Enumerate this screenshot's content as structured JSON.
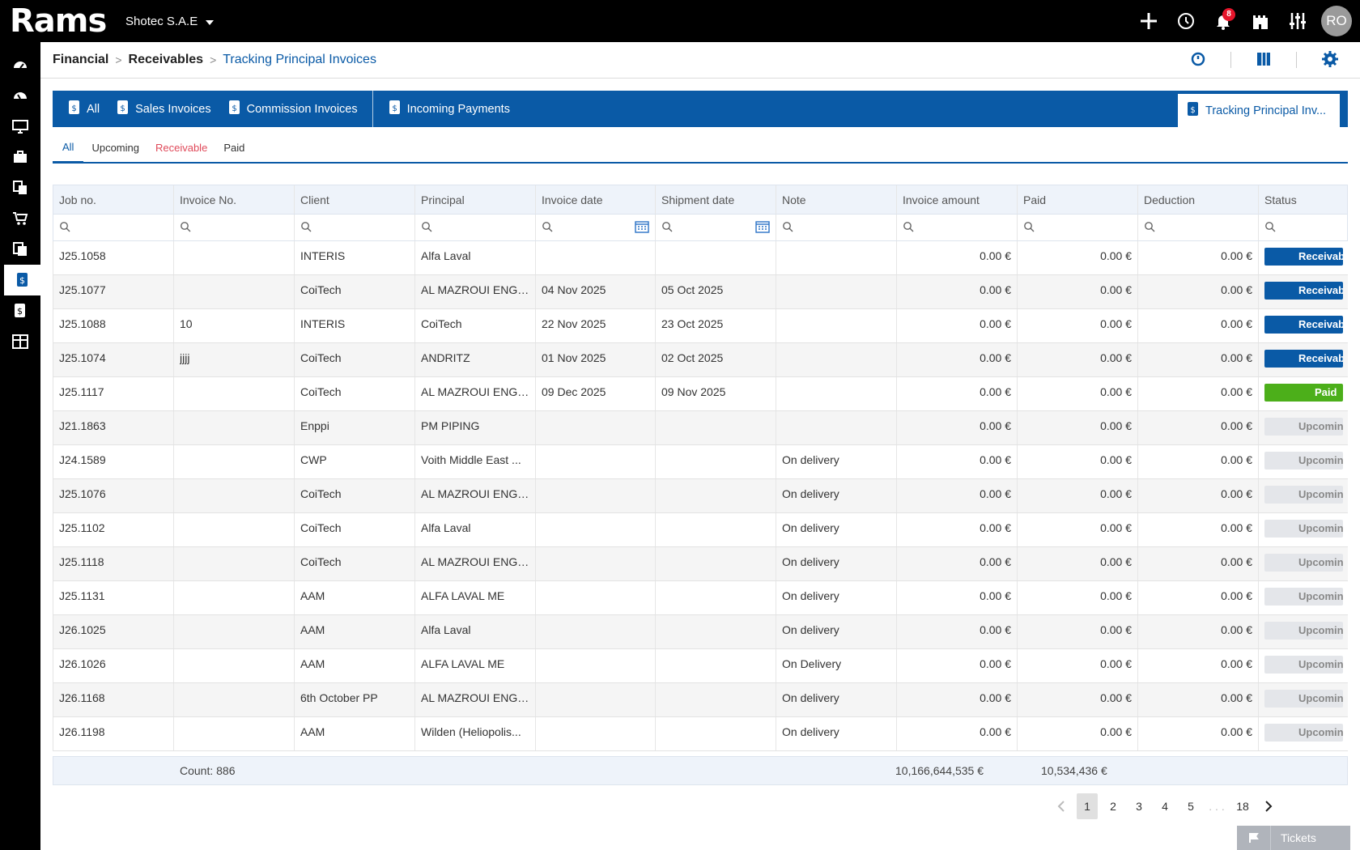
{
  "app": {
    "logo": "Rams",
    "company": "Shotec S.A.E",
    "notifications": "8",
    "avatar": "RO"
  },
  "breadcrumb": {
    "level1": "Financial",
    "level2": "Receivables",
    "current": "Tracking Principal Invoices"
  },
  "module_tabs": [
    {
      "label": "All"
    },
    {
      "label": "Sales Invoices"
    },
    {
      "label": "Commission Invoices"
    },
    {
      "label": "Incoming Payments"
    }
  ],
  "active_module_tab": "Tracking Principal Inv...",
  "sub_tabs": [
    {
      "label": "All"
    },
    {
      "label": "Upcoming"
    },
    {
      "label": "Receivable"
    },
    {
      "label": "Paid"
    }
  ],
  "columns": [
    "Job no.",
    "Invoice No.",
    "Client",
    "Principal",
    "Invoice date",
    "Shipment date",
    "Note",
    "Invoice amount",
    "Paid",
    "Deduction",
    "Status"
  ],
  "rows": [
    {
      "job": "J25.1058",
      "inv": "",
      "client": "INTERIS",
      "principal": "Alfa Laval",
      "idate": "",
      "sdate": "",
      "note": "",
      "amount": "0.00 €",
      "paid": "0.00 €",
      "ded": "0.00 €",
      "status": "Receivable"
    },
    {
      "job": "J25.1077",
      "inv": "",
      "client": "CoiTech",
      "principal": "AL MAZROUI ENGI...",
      "idate": "04 Nov 2025",
      "sdate": "05 Oct 2025",
      "note": "",
      "amount": "0.00 €",
      "paid": "0.00 €",
      "ded": "0.00 €",
      "status": "Receivable"
    },
    {
      "job": "J25.1088",
      "inv": "10",
      "client": "INTERIS",
      "principal": "CoiTech",
      "idate": "22 Nov 2025",
      "sdate": "23 Oct 2025",
      "note": "",
      "amount": "0.00 €",
      "paid": "0.00 €",
      "ded": "0.00 €",
      "status": "Receivable"
    },
    {
      "job": "J25.1074",
      "inv": "jjjj",
      "client": "CoiTech",
      "principal": "ANDRITZ",
      "idate": "01 Nov 2025",
      "sdate": "02 Oct 2025",
      "note": "",
      "amount": "0.00 €",
      "paid": "0.00 €",
      "ded": "0.00 €",
      "status": "Receivable"
    },
    {
      "job": "J25.1117",
      "inv": "",
      "client": "CoiTech",
      "principal": "AL MAZROUI ENGI...",
      "idate": "09 Dec 2025",
      "sdate": "09 Nov 2025",
      "note": "",
      "amount": "0.00 €",
      "paid": "0.00 €",
      "ded": "0.00 €",
      "status": "Paid"
    },
    {
      "job": "J21.1863",
      "inv": "",
      "client": "Enppi",
      "principal": "PM PIPING",
      "idate": "",
      "sdate": "",
      "note": "",
      "amount": "0.00 €",
      "paid": "0.00 €",
      "ded": "0.00 €",
      "status": "Upcoming"
    },
    {
      "job": "J24.1589",
      "inv": "",
      "client": "CWP",
      "principal": "Voith Middle East ...",
      "idate": "",
      "sdate": "",
      "note": "On delivery",
      "amount": "0.00 €",
      "paid": "0.00 €",
      "ded": "0.00 €",
      "status": "Upcoming"
    },
    {
      "job": "J25.1076",
      "inv": "",
      "client": "CoiTech",
      "principal": "AL MAZROUI ENGI...",
      "idate": "",
      "sdate": "",
      "note": "On delivery",
      "amount": "0.00 €",
      "paid": "0.00 €",
      "ded": "0.00 €",
      "status": "Upcoming"
    },
    {
      "job": "J25.1102",
      "inv": "",
      "client": "CoiTech",
      "principal": "Alfa Laval",
      "idate": "",
      "sdate": "",
      "note": "On delivery",
      "amount": "0.00 €",
      "paid": "0.00 €",
      "ded": "0.00 €",
      "status": "Upcoming"
    },
    {
      "job": "J25.1118",
      "inv": "",
      "client": "CoiTech",
      "principal": "AL MAZROUI ENGI...",
      "idate": "",
      "sdate": "",
      "note": "On delivery",
      "amount": "0.00 €",
      "paid": "0.00 €",
      "ded": "0.00 €",
      "status": "Upcoming"
    },
    {
      "job": "J25.1131",
      "inv": "",
      "client": "AAM",
      "principal": "ALFA LAVAL ME",
      "idate": "",
      "sdate": "",
      "note": "On delivery",
      "amount": "0.00 €",
      "paid": "0.00 €",
      "ded": "0.00 €",
      "status": "Upcoming"
    },
    {
      "job": "J26.1025",
      "inv": "",
      "client": "AAM",
      "principal": "Alfa Laval",
      "idate": "",
      "sdate": "",
      "note": "On delivery",
      "amount": "0.00 €",
      "paid": "0.00 €",
      "ded": "0.00 €",
      "status": "Upcoming"
    },
    {
      "job": "J26.1026",
      "inv": "",
      "client": "AAM",
      "principal": "ALFA LAVAL ME",
      "idate": "",
      "sdate": "",
      "note": "On Delivery",
      "amount": "0.00 €",
      "paid": "0.00 €",
      "ded": "0.00 €",
      "status": "Upcoming"
    },
    {
      "job": "J26.1168",
      "inv": "",
      "client": "6th October PP",
      "principal": "AL MAZROUI ENGI...",
      "idate": "",
      "sdate": "",
      "note": "On delivery",
      "amount": "0.00 €",
      "paid": "0.00 €",
      "ded": "0.00 €",
      "status": "Upcoming"
    },
    {
      "job": "J26.1198",
      "inv": "",
      "client": "AAM",
      "principal": "Wilden (Heliopolis...",
      "idate": "",
      "sdate": "",
      "note": "On delivery",
      "amount": "0.00 €",
      "paid": "0.00 €",
      "ded": "0.00 €",
      "status": "Upcoming"
    }
  ],
  "summary": {
    "count": "Count: 886",
    "invoice_total": "10,166,644,535 €",
    "paid_total": "10,534,436 €"
  },
  "pagination": {
    "pages": [
      "1",
      "2",
      "3",
      "4",
      "5"
    ],
    "ellipsis": ". . .",
    "last": "18"
  },
  "tickets_label": "Tickets",
  "colors": {
    "primary": "#0a5aa6",
    "paid": "#4caf1a",
    "upcoming": "#e4e6ea",
    "receivable_tab": "#e04a5a"
  }
}
